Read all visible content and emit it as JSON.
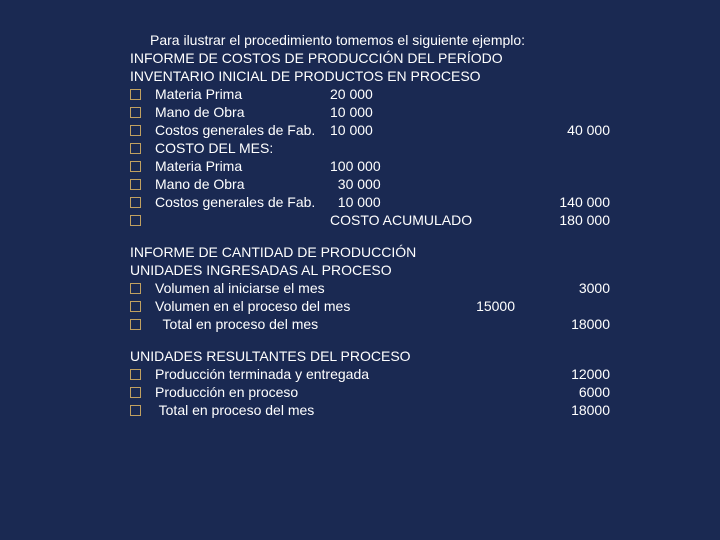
{
  "background_color": "#1a2952",
  "text_color": "#ffffff",
  "checkbox_border_color": "#c0a060",
  "font_family": "Arial",
  "font_size": 14,
  "intro": "Para ilustrar el procedimiento tomemos el siguiente ejemplo:",
  "section1": {
    "heading1": "INFORME DE COSTOS DE PRODUCCIÓN DEL PERÍODO",
    "heading2": "INVENTARIO INICIAL DE PRODUCTOS EN PROCESO",
    "items": [
      {
        "label": "Materia Prima",
        "v1": "20 000",
        "v2": ""
      },
      {
        "label": "Mano de Obra",
        "v1": "10 000",
        "v2": ""
      },
      {
        "label": "Costos generales de Fab.",
        "v1": "10 000",
        "v2": "40 000"
      },
      {
        "label": "COSTO DEL MES:",
        "v1": "",
        "v2": ""
      },
      {
        "label": "Materia Prima",
        "v1": "100 000",
        "v2": ""
      },
      {
        "label": "Mano de Obra",
        "v1": "  30 000",
        "v2": ""
      },
      {
        "label": "Costos generales de Fab.",
        "v1": "  10 000",
        "v2": "140 000"
      },
      {
        "label": "",
        "v1": "COSTO ACUMULADO",
        "v2": "180 000"
      }
    ]
  },
  "section2": {
    "heading1": "INFORME DE CANTIDAD DE PRODUCCIÓN",
    "heading2": "UNIDADES INGRESADAS AL PROCESO",
    "items": [
      {
        "label": "Volumen al iniciarse el mes",
        "v1": "",
        "v2": "3000"
      },
      {
        "label": "Volumen en el proceso del mes",
        "v1": "15000",
        "v2": ""
      },
      {
        "label": "  Total en proceso del mes",
        "v1": "",
        "v2": "18000"
      }
    ]
  },
  "section3": {
    "heading1": "UNIDADES RESULTANTES DEL PROCESO",
    "items": [
      {
        "label": "Producción terminada y entregada",
        "v1": "",
        "v2": "12000"
      },
      {
        "label": "Producción en proceso",
        "v1": "",
        "v2": "6000"
      },
      {
        "label": " Total en proceso del mes",
        "v1": "",
        "v2": "18000"
      }
    ]
  }
}
